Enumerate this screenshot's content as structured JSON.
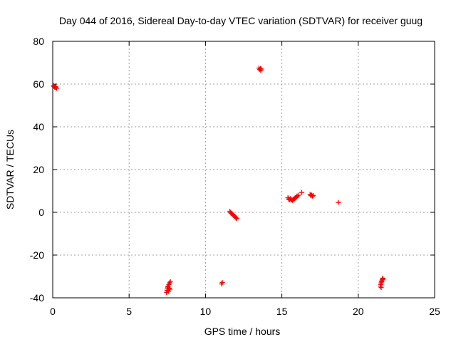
{
  "chart_data": {
    "type": "scatter",
    "title": "Day 044 of 2016, Sidereal Day-to-day VTEC variation (SDTVAR) for receiver guug",
    "xlabel": "GPS time / hours",
    "ylabel": "SDTVAR / TECUs",
    "xlim": [
      0,
      25
    ],
    "ylim": [
      -40,
      80
    ],
    "xticks": [
      "0",
      "5",
      "10",
      "15",
      "20",
      "25"
    ],
    "yticks": [
      "-40",
      "-20",
      "0",
      "20",
      "40",
      "60",
      "80"
    ],
    "grid": true,
    "marker": "plus",
    "color": "#ff0000",
    "series": [
      {
        "points": [
          [
            0.05,
            59.2
          ],
          [
            0.08,
            58.9
          ],
          [
            0.1,
            59.0
          ],
          [
            0.12,
            58.6
          ],
          [
            0.15,
            58.8
          ],
          [
            0.18,
            58.5
          ],
          [
            0.2,
            58.7
          ],
          [
            0.25,
            58.0
          ],
          [
            7.45,
            -37.5
          ],
          [
            7.48,
            -36.5
          ],
          [
            7.5,
            -35.8
          ],
          [
            7.52,
            -35.0
          ],
          [
            7.55,
            -34.5
          ],
          [
            7.57,
            -37.0
          ],
          [
            7.6,
            -33.8
          ],
          [
            7.62,
            -35.5
          ],
          [
            7.65,
            -33.0
          ],
          [
            7.68,
            -36.0
          ],
          [
            7.7,
            -32.5
          ],
          [
            11.05,
            -33.5
          ],
          [
            11.1,
            -32.8
          ],
          [
            11.6,
            0.5
          ],
          [
            11.65,
            -0.2
          ],
          [
            11.7,
            -0.5
          ],
          [
            11.75,
            -0.8
          ],
          [
            11.8,
            -1.2
          ],
          [
            11.85,
            -1.5
          ],
          [
            11.9,
            -1.8
          ],
          [
            11.95,
            -2.2
          ],
          [
            12.0,
            -2.6
          ],
          [
            12.05,
            -3.0
          ],
          [
            13.5,
            67.5
          ],
          [
            13.55,
            66.8
          ],
          [
            13.6,
            67.2
          ],
          [
            13.62,
            66.3
          ],
          [
            13.65,
            67.0
          ],
          [
            15.4,
            6.8
          ],
          [
            15.45,
            6.2
          ],
          [
            15.5,
            5.9
          ],
          [
            15.55,
            6.4
          ],
          [
            15.6,
            5.7
          ],
          [
            15.65,
            6.0
          ],
          [
            15.7,
            5.6
          ],
          [
            15.75,
            6.1
          ],
          [
            15.8,
            6.3
          ],
          [
            15.85,
            6.6
          ],
          [
            15.9,
            6.9
          ],
          [
            15.95,
            7.2
          ],
          [
            16.0,
            7.6
          ],
          [
            16.1,
            8.0
          ],
          [
            16.3,
            9.3
          ],
          [
            16.85,
            8.4
          ],
          [
            16.9,
            7.8
          ],
          [
            16.95,
            8.1
          ],
          [
            17.0,
            7.6
          ],
          [
            17.05,
            7.9
          ],
          [
            18.7,
            4.6
          ],
          [
            21.45,
            -34.5
          ],
          [
            21.48,
            -33.8
          ],
          [
            21.5,
            -33.0
          ],
          [
            21.52,
            -32.5
          ],
          [
            21.55,
            -32.0
          ],
          [
            21.58,
            -31.5
          ],
          [
            21.6,
            -30.8
          ],
          [
            21.62,
            -31.2
          ],
          [
            21.5,
            -35.2
          ]
        ]
      }
    ]
  }
}
